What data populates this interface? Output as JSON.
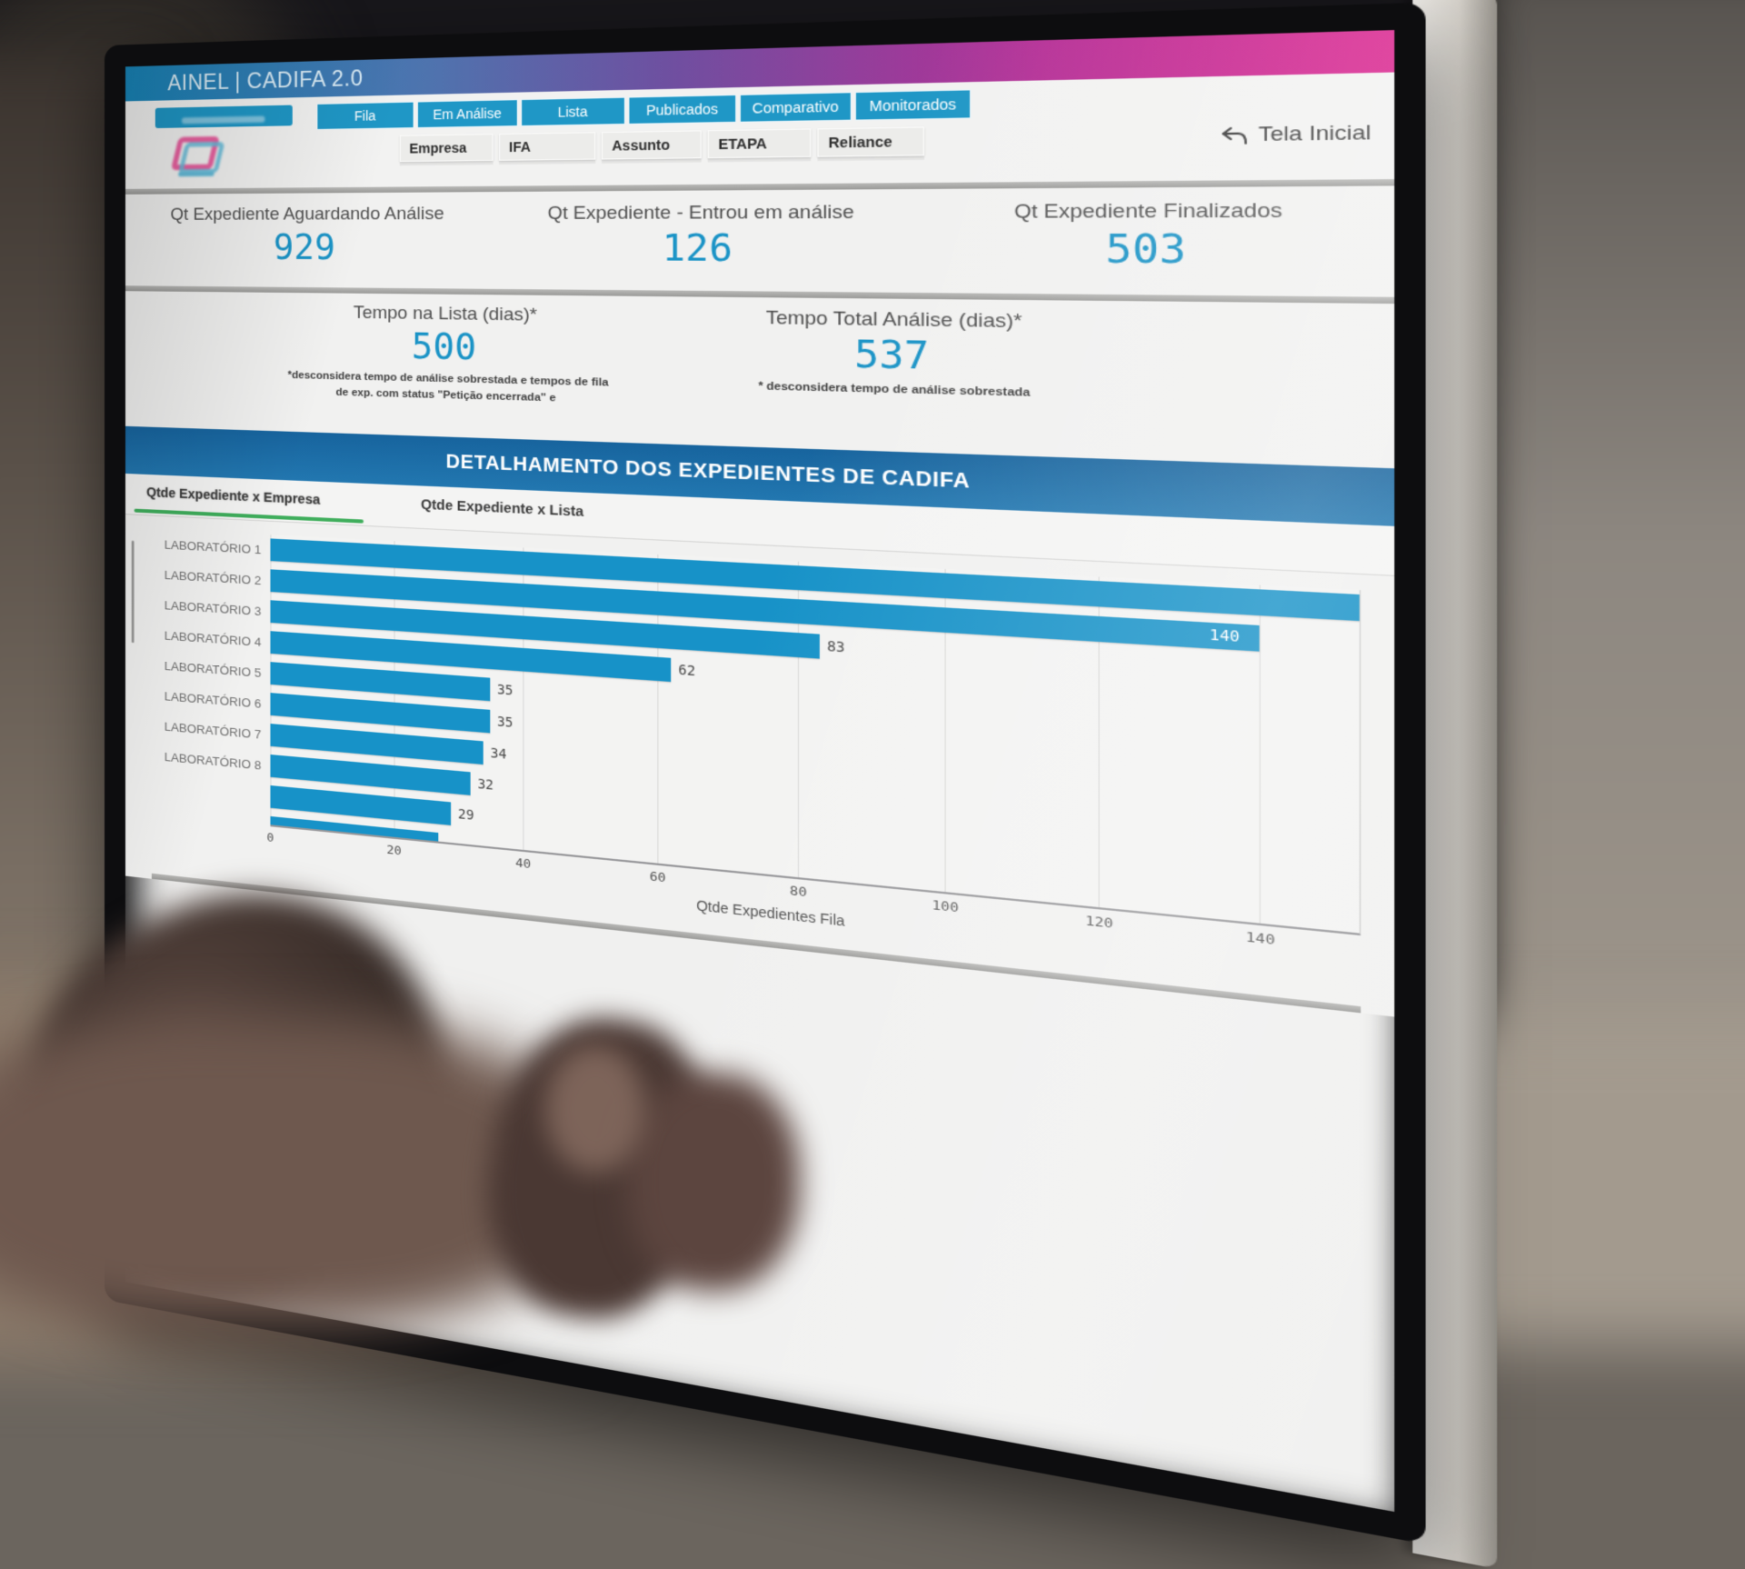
{
  "header": {
    "title": "AINEL | CADIFA 2.0",
    "home_link": "Tela Inicial"
  },
  "nav": {
    "primary_tabs": [
      "Fila",
      "Em Análise",
      "Lista",
      "Publicados",
      "Comparativo",
      "Monitorados"
    ],
    "secondary_tabs": [
      "Empresa",
      "IFA",
      "Assunto",
      "ETAPA",
      "Reliance"
    ]
  },
  "kpis_row1": [
    {
      "label": "Qt Expediente Aguardando Análise",
      "value": "929"
    },
    {
      "label": "Qt Expediente - Entrou em análise",
      "value": "126"
    },
    {
      "label": "Qt Expediente Finalizados",
      "value": "503"
    }
  ],
  "kpis_row2": [
    {
      "label": "Tempo na Lista (dias)*",
      "value": "500",
      "footnote": "*desconsidera tempo de análise sobrestada e tempos de fila de exp. com status \"Petição encerrada\" e"
    },
    {
      "label": "Tempo Total Análise (dias)*",
      "value": "537",
      "footnote": "* desconsidera tempo de análise sobrestada"
    }
  ],
  "section": {
    "title": "DETALHAMENTO DOS EXPEDIENTES DE CADIFA",
    "tabs": [
      {
        "label": "Qtde Expediente x Empresa",
        "active": true
      },
      {
        "label": "Qtde Expediente x Lista",
        "active": false
      }
    ]
  },
  "chart_data": {
    "type": "bar",
    "orientation": "horizontal",
    "title": "Qtde Expediente x Empresa",
    "xlabel": "Qtde Expedientes Fila",
    "ylabel": "",
    "xlim": [
      0,
      140
    ],
    "x_ticks": [
      0,
      20,
      40,
      60,
      80,
      100,
      120,
      140
    ],
    "grid": "vertical",
    "bar_color": "#1792c8",
    "rows": [
      {
        "category": "LABORATÓRIO 1",
        "value": null,
        "value_label": "",
        "clipped": true
      },
      {
        "category": "LABORATÓRIO 2",
        "value": 140,
        "value_label": "140",
        "label_inside": true
      },
      {
        "category": "LABORATÓRIO 3",
        "value": 83,
        "value_label": "83"
      },
      {
        "category": "LABORATÓRIO 4",
        "value": 62,
        "value_label": "62"
      },
      {
        "category": "LABORATÓRIO 5",
        "value": 35,
        "value_label": "35"
      },
      {
        "category": "LABORATÓRIO 6",
        "value": 35,
        "value_label": "35"
      },
      {
        "category": "LABORATÓRIO 7",
        "value": 34,
        "value_label": "34"
      },
      {
        "category": "LABORATÓRIO 8",
        "value": 32,
        "value_label": "32"
      },
      {
        "category": "",
        "value": 29,
        "value_label": "29",
        "partial": true
      },
      {
        "category": "",
        "value": 27,
        "value_label": "",
        "partial": true
      }
    ]
  },
  "colors": {
    "header_gradient": [
      "#1886ba",
      "#6f4fa0",
      "#d91f8c"
    ],
    "accent_teal": "#1f97c6",
    "kpi_value": "#1a93c6",
    "banner_blue": "#17649e",
    "bar_color": "#1792c8",
    "active_tab_green": "#3fae5c"
  }
}
